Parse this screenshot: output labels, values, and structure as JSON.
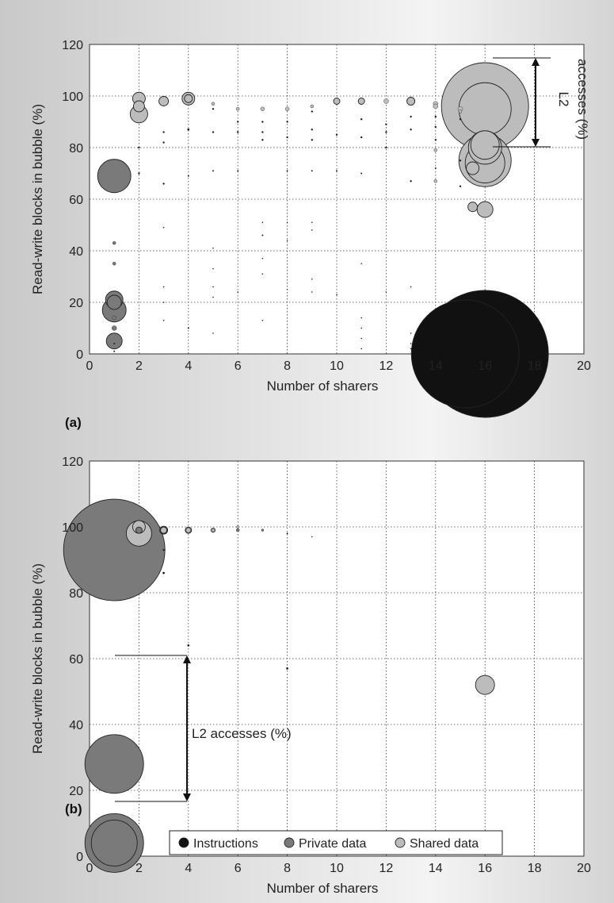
{
  "chart_data": [
    {
      "panel_label": "(a)",
      "type": "scatter",
      "xlabel": "Number of sharers",
      "ylabel": "Read-write blocks in bubble (%)",
      "xlim": [
        0,
        20
      ],
      "ylim": [
        0,
        120
      ],
      "xticks": [
        0,
        2,
        4,
        6,
        8,
        10,
        12,
        14,
        16,
        18,
        20
      ],
      "yticks": [
        0,
        20,
        40,
        60,
        80,
        100,
        120
      ],
      "grid": true,
      "size_label": "L2 accesses (%)",
      "size_label_lines": [
        "L2",
        "accesses (%)"
      ],
      "series": [
        {
          "name": "Instructions",
          "color": "#111111",
          "points": [
            {
              "x": 15.2,
              "y": 0,
              "r": 68
            },
            {
              "x": 16,
              "y": 0,
              "r": 80
            },
            {
              "x": 2,
              "y": 80,
              "r": 1
            },
            {
              "x": 2,
              "y": 70,
              "r": 1
            },
            {
              "x": 3,
              "y": 82,
              "r": 1
            },
            {
              "x": 3,
              "y": 86,
              "r": 1
            },
            {
              "x": 3,
              "y": 66,
              "r": 1
            },
            {
              "x": 3,
              "y": 49,
              "r": 0.6
            },
            {
              "x": 3,
              "y": 26,
              "r": 0.6
            },
            {
              "x": 3,
              "y": 20,
              "r": 0.6
            },
            {
              "x": 3,
              "y": 13,
              "r": 0.6
            },
            {
              "x": 4,
              "y": 87,
              "r": 1.2
            },
            {
              "x": 4,
              "y": 69,
              "r": 0.8
            },
            {
              "x": 4,
              "y": 10,
              "r": 0.8
            },
            {
              "x": 5,
              "y": 95,
              "r": 1
            },
            {
              "x": 5,
              "y": 86,
              "r": 1
            },
            {
              "x": 5,
              "y": 71,
              "r": 0.8
            },
            {
              "x": 5,
              "y": 41,
              "r": 0.6
            },
            {
              "x": 5,
              "y": 33,
              "r": 0.6
            },
            {
              "x": 5,
              "y": 26,
              "r": 0.6
            },
            {
              "x": 5,
              "y": 22,
              "r": 0.6
            },
            {
              "x": 5,
              "y": 8,
              "r": 0.6
            },
            {
              "x": 6,
              "y": 90,
              "r": 1
            },
            {
              "x": 6,
              "y": 86,
              "r": 1
            },
            {
              "x": 6,
              "y": 71,
              "r": 0.8
            },
            {
              "x": 6,
              "y": 24,
              "r": 0.6
            },
            {
              "x": 7,
              "y": 90,
              "r": 1
            },
            {
              "x": 7,
              "y": 86,
              "r": 1
            },
            {
              "x": 7,
              "y": 83,
              "r": 1
            },
            {
              "x": 7,
              "y": 51,
              "r": 0.6
            },
            {
              "x": 7,
              "y": 46,
              "r": 0.8
            },
            {
              "x": 7,
              "y": 37,
              "r": 0.6
            },
            {
              "x": 7,
              "y": 31,
              "r": 0.6
            },
            {
              "x": 7,
              "y": 13,
              "r": 0.6
            },
            {
              "x": 8,
              "y": 90,
              "r": 1
            },
            {
              "x": 8,
              "y": 84,
              "r": 1
            },
            {
              "x": 8,
              "y": 71,
              "r": 0.8
            },
            {
              "x": 8,
              "y": 51,
              "r": 0.6
            },
            {
              "x": 8,
              "y": 44,
              "r": 0.6
            },
            {
              "x": 8,
              "y": 25,
              "r": 0.6
            },
            {
              "x": 9,
              "y": 94,
              "r": 1
            },
            {
              "x": 9,
              "y": 87,
              "r": 1
            },
            {
              "x": 9,
              "y": 83,
              "r": 1
            },
            {
              "x": 9,
              "y": 71,
              "r": 0.8
            },
            {
              "x": 9,
              "y": 51,
              "r": 0.6
            },
            {
              "x": 9,
              "y": 48,
              "r": 0.6
            },
            {
              "x": 9,
              "y": 29,
              "r": 0.6
            },
            {
              "x": 9,
              "y": 24,
              "r": 0.6
            },
            {
              "x": 10,
              "y": 85,
              "r": 1
            },
            {
              "x": 10,
              "y": 71,
              "r": 0.8
            },
            {
              "x": 10,
              "y": 23,
              "r": 0.6
            },
            {
              "x": 11,
              "y": 91,
              "r": 1
            },
            {
              "x": 11,
              "y": 84,
              "r": 1
            },
            {
              "x": 11,
              "y": 70,
              "r": 0.8
            },
            {
              "x": 11,
              "y": 35,
              "r": 0.6
            },
            {
              "x": 11,
              "y": 14,
              "r": 0.6
            },
            {
              "x": 11,
              "y": 10,
              "r": 0.6
            },
            {
              "x": 11,
              "y": 6,
              "r": 0.6
            },
            {
              "x": 11,
              "y": 2,
              "r": 0.6
            },
            {
              "x": 12,
              "y": 89,
              "r": 1
            },
            {
              "x": 12,
              "y": 86,
              "r": 1
            },
            {
              "x": 12,
              "y": 80,
              "r": 1
            },
            {
              "x": 12,
              "y": 24,
              "r": 0.6
            },
            {
              "x": 13,
              "y": 92,
              "r": 1
            },
            {
              "x": 13,
              "y": 87,
              "r": 1
            },
            {
              "x": 13,
              "y": 67,
              "r": 1
            },
            {
              "x": 13,
              "y": 26,
              "r": 0.6
            },
            {
              "x": 13,
              "y": 8,
              "r": 0.6
            },
            {
              "x": 13,
              "y": 4,
              "r": 0.6
            },
            {
              "x": 13,
              "y": 2,
              "r": 0.6
            },
            {
              "x": 14,
              "y": 92,
              "r": 1
            },
            {
              "x": 14,
              "y": 88,
              "r": 1
            },
            {
              "x": 14,
              "y": 83,
              "r": 1
            },
            {
              "x": 14,
              "y": 72,
              "r": 0.8
            },
            {
              "x": 15,
              "y": 91,
              "r": 1
            },
            {
              "x": 15,
              "y": 75,
              "r": 1
            },
            {
              "x": 15,
              "y": 65,
              "r": 1
            },
            {
              "x": 15,
              "y": 20,
              "r": 0.6
            },
            {
              "x": 1,
              "y": 4,
              "r": 0.8
            },
            {
              "x": 1,
              "y": 1,
              "r": 0.8
            }
          ]
        },
        {
          "name": "Private data",
          "color": "#7a7a7a",
          "points": [
            {
              "x": 1,
              "y": 69,
              "r": 21
            },
            {
              "x": 1,
              "y": 17,
              "r": 15
            },
            {
              "x": 1,
              "y": 21,
              "r": 11
            },
            {
              "x": 1,
              "y": 20,
              "r": 9
            },
            {
              "x": 1,
              "y": 5,
              "r": 10
            },
            {
              "x": 1,
              "y": 10,
              "r": 3
            },
            {
              "x": 1,
              "y": 14,
              "r": 2.5
            },
            {
              "x": 1,
              "y": 35,
              "r": 2
            },
            {
              "x": 1,
              "y": 43,
              "r": 2
            }
          ]
        },
        {
          "name": "Shared data",
          "color": "#bcbcbc",
          "points": [
            {
              "x": 16,
              "y": 96,
              "r": 55
            },
            {
              "x": 16,
              "y": 95,
              "r": 33
            },
            {
              "x": 16,
              "y": 75,
              "r": 33
            },
            {
              "x": 16,
              "y": 74,
              "r": 25
            },
            {
              "x": 16,
              "y": 80,
              "r": 21
            },
            {
              "x": 16,
              "y": 81,
              "r": 18
            },
            {
              "x": 16,
              "y": 56,
              "r": 10
            },
            {
              "x": 15.5,
              "y": 72,
              "r": 8
            },
            {
              "x": 15.5,
              "y": 57,
              "r": 6
            },
            {
              "x": 2,
              "y": 99,
              "r": 8
            },
            {
              "x": 2,
              "y": 96,
              "r": 7
            },
            {
              "x": 2,
              "y": 93,
              "r": 11
            },
            {
              "x": 3,
              "y": 98,
              "r": 6
            },
            {
              "x": 4,
              "y": 99,
              "r": 8
            },
            {
              "x": 4,
              "y": 99,
              "r": 5
            },
            {
              "x": 5,
              "y": 97,
              "r": 2
            },
            {
              "x": 6,
              "y": 95,
              "r": 2
            },
            {
              "x": 7,
              "y": 95,
              "r": 2.5
            },
            {
              "x": 8,
              "y": 95,
              "r": 2.5
            },
            {
              "x": 9,
              "y": 96,
              "r": 2
            },
            {
              "x": 10,
              "y": 98,
              "r": 4
            },
            {
              "x": 11,
              "y": 98,
              "r": 4
            },
            {
              "x": 12,
              "y": 98,
              "r": 3
            },
            {
              "x": 13,
              "y": 98,
              "r": 5
            },
            {
              "x": 14,
              "y": 97,
              "r": 3
            },
            {
              "x": 14,
              "y": 96,
              "r": 3
            },
            {
              "x": 14,
              "y": 79,
              "r": 2
            },
            {
              "x": 15,
              "y": 95,
              "r": 3
            },
            {
              "x": 15,
              "y": 94,
              "r": 2
            },
            {
              "x": 14,
              "y": 67,
              "r": 2
            }
          ]
        }
      ]
    },
    {
      "panel_label": "(b)",
      "type": "scatter",
      "xlabel": "Number of sharers",
      "ylabel": "Read-write blocks in bubble (%)",
      "xlim": [
        0,
        20
      ],
      "ylim": [
        0,
        120
      ],
      "xticks": [
        0,
        2,
        4,
        6,
        8,
        10,
        12,
        14,
        16,
        18,
        20
      ],
      "yticks": [
        0,
        20,
        40,
        60,
        80,
        100,
        120
      ],
      "grid": true,
      "size_label": "L2 accesses (%)",
      "size_label_lines": [
        "L2 accesses (%)"
      ],
      "series": [
        {
          "name": "Instructions",
          "color": "#111111",
          "points": [
            {
              "x": 3,
              "y": 86,
              "r": 1.2
            },
            {
              "x": 3,
              "y": 93,
              "r": 1
            },
            {
              "x": 4,
              "y": 64,
              "r": 1.2
            },
            {
              "x": 8,
              "y": 57,
              "r": 1.2
            },
            {
              "x": 16,
              "y": 5,
              "r": 1.2
            },
            {
              "x": 16,
              "y": 6,
              "r": 0.8
            },
            {
              "x": 8,
              "y": 98,
              "r": 0.8
            },
            {
              "x": 9,
              "y": 97,
              "r": 0.6
            }
          ]
        },
        {
          "name": "Private data",
          "color": "#7a7a7a",
          "points": [
            {
              "x": 1,
              "y": 93,
              "r": 64
            },
            {
              "x": 1,
              "y": 28,
              "r": 37
            },
            {
              "x": 1,
              "y": 4,
              "r": 37
            },
            {
              "x": 1,
              "y": 4,
              "r": 29
            },
            {
              "x": 2,
              "y": 99,
              "r": 4
            },
            {
              "x": 3,
              "y": 99,
              "r": 5
            },
            {
              "x": 4,
              "y": 99,
              "r": 4
            },
            {
              "x": 5,
              "y": 99,
              "r": 3
            },
            {
              "x": 6,
              "y": 99,
              "r": 2
            },
            {
              "x": 7,
              "y": 99,
              "r": 1.5
            }
          ]
        },
        {
          "name": "Shared data",
          "color": "#bcbcbc",
          "points": [
            {
              "x": 2,
              "y": 98,
              "r": 16
            },
            {
              "x": 2,
              "y": 100,
              "r": 8
            },
            {
              "x": 3,
              "y": 99,
              "r": 4
            },
            {
              "x": 4,
              "y": 99,
              "r": 3
            },
            {
              "x": 5,
              "y": 99,
              "r": 2
            },
            {
              "x": 6,
              "y": 100,
              "r": 1.5
            },
            {
              "x": 16,
              "y": 52,
              "r": 12
            }
          ]
        }
      ]
    }
  ],
  "legend": {
    "items": [
      {
        "label": "Instructions",
        "color": "#111111"
      },
      {
        "label": "Private data",
        "color": "#7a7a7a"
      },
      {
        "label": "Shared data",
        "color": "#bcbcbc"
      }
    ]
  }
}
